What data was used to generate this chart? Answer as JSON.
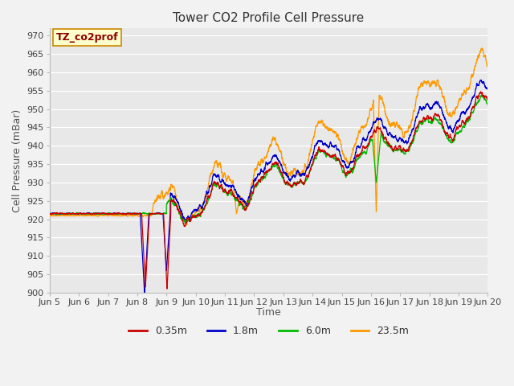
{
  "title": "Tower CO2 Profile Cell Pressure",
  "ylabel": "Cell Pressure (mBar)",
  "xlabel": "Time",
  "annotation": "TZ_co2prof",
  "ylim": [
    900,
    972
  ],
  "yticks": [
    900,
    905,
    910,
    915,
    920,
    925,
    930,
    935,
    940,
    945,
    950,
    955,
    960,
    965,
    970
  ],
  "xtick_labels": [
    "Jun 5",
    "Jun 6",
    "Jun 7",
    "Jun 8",
    "Jun 9",
    "Jun 10",
    "Jun 11",
    "Jun 12",
    "Jun 13",
    "Jun 14",
    "Jun 15",
    "Jun 16",
    "Jun 17",
    "Jun 18",
    "Jun 19",
    "Jun 20"
  ],
  "series": [
    {
      "label": "0.35m",
      "color": "#cc0000"
    },
    {
      "label": "1.8m",
      "color": "#0000cc"
    },
    {
      "label": "6.0m",
      "color": "#00bb00"
    },
    {
      "label": "23.5m",
      "color": "#ff9900"
    }
  ],
  "bg_color": "#e8e8e8",
  "title_fontsize": 11,
  "label_fontsize": 9,
  "tick_fontsize": 8
}
